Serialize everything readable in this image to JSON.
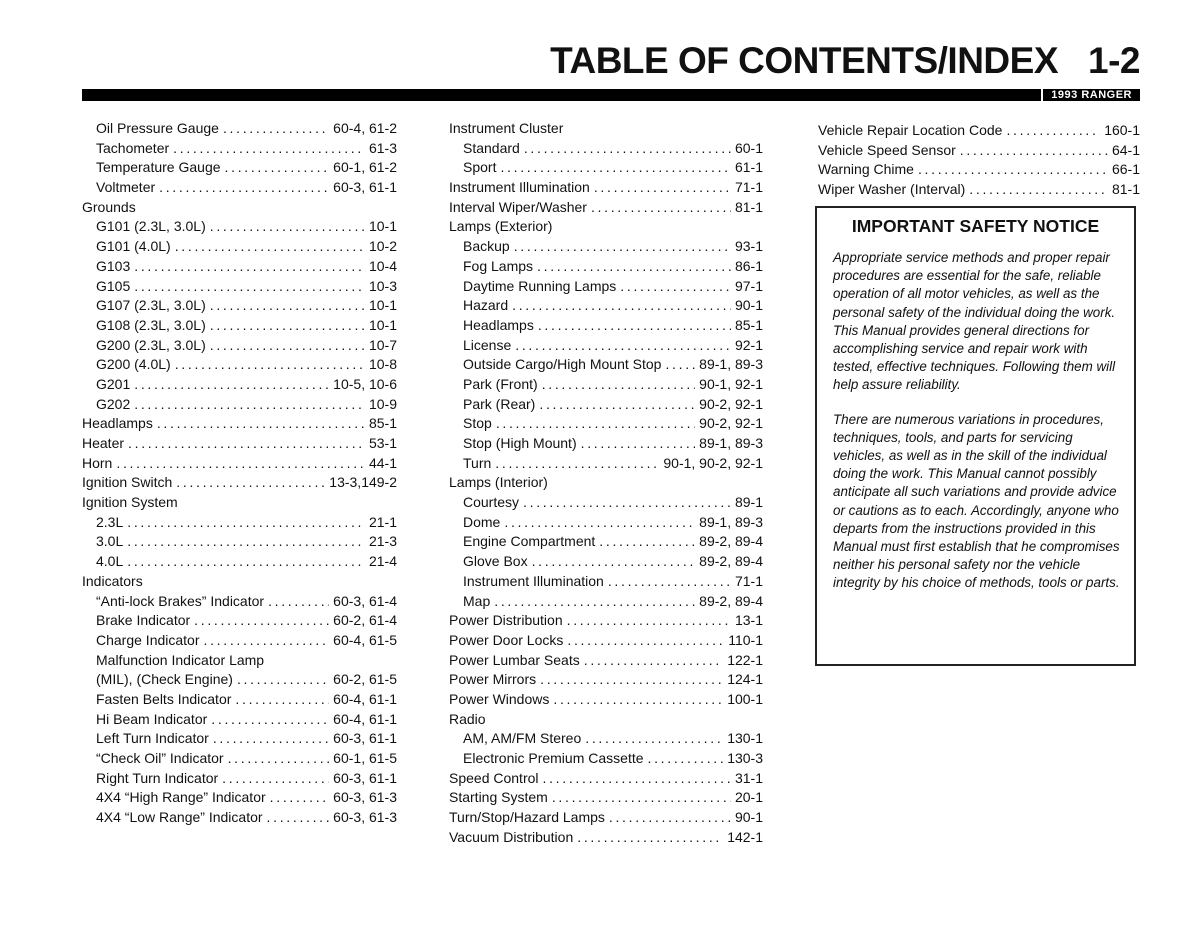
{
  "header": {
    "title": "TABLE OF CONTENTS/INDEX",
    "page_number": "1-2",
    "model": "1993 RANGER"
  },
  "columns": [
    [
      {
        "label": "Oil Pressure Gauge",
        "page": "60-4, 61-2",
        "indent": true
      },
      {
        "label": "Tachometer",
        "page": "61-3",
        "indent": true
      },
      {
        "label": "Temperature Gauge",
        "page": "60-1, 61-2",
        "indent": true
      },
      {
        "label": "Voltmeter",
        "page": "60-3, 61-1",
        "indent": true
      },
      {
        "label": "Grounds",
        "page": "",
        "indent": false
      },
      {
        "label": "G101 (2.3L, 3.0L)",
        "page": "10-1",
        "indent": true
      },
      {
        "label": "G101 (4.0L)",
        "page": "10-2",
        "indent": true
      },
      {
        "label": "G103",
        "page": "10-4",
        "indent": true
      },
      {
        "label": "G105",
        "page": "10-3",
        "indent": true
      },
      {
        "label": "G107 (2.3L, 3.0L)",
        "page": "10-1",
        "indent": true
      },
      {
        "label": "G108 (2.3L, 3.0L)",
        "page": "10-1",
        "indent": true
      },
      {
        "label": "G200 (2.3L, 3.0L)",
        "page": "10-7",
        "indent": true
      },
      {
        "label": "G200 (4.0L)",
        "page": "10-8",
        "indent": true
      },
      {
        "label": "G201",
        "page": "10-5, 10-6",
        "indent": true
      },
      {
        "label": "G202",
        "page": "10-9",
        "indent": true
      },
      {
        "label": "Headlamps",
        "page": "85-1",
        "indent": false
      },
      {
        "label": "Heater",
        "page": "53-1",
        "indent": false
      },
      {
        "label": "Horn",
        "page": "44-1",
        "indent": false
      },
      {
        "label": "Ignition Switch",
        "page": "13-3,149-2",
        "indent": false
      },
      {
        "label": "Ignition System",
        "page": "",
        "indent": false
      },
      {
        "label": "2.3L",
        "page": "21-1",
        "indent": true
      },
      {
        "label": "3.0L",
        "page": "21-3",
        "indent": true
      },
      {
        "label": "4.0L",
        "page": "21-4",
        "indent": true
      },
      {
        "label": "Indicators",
        "page": "",
        "indent": false
      },
      {
        "label": "“Anti-lock Brakes” Indicator",
        "page": "60-3, 61-4",
        "indent": true
      },
      {
        "label": "Brake Indicator",
        "page": "60-2, 61-4",
        "indent": true
      },
      {
        "label": "Charge Indicator",
        "page": "60-4, 61-5",
        "indent": true
      },
      {
        "label": "Malfunction Indicator Lamp",
        "page": "",
        "indent": true
      },
      {
        "label": "(MIL), (Check Engine)",
        "page": "60-2, 61-5",
        "indent": true
      },
      {
        "label": "Fasten Belts Indicator",
        "page": "60-4, 61-1",
        "indent": true
      },
      {
        "label": "Hi Beam Indicator",
        "page": "60-4, 61-1",
        "indent": true
      },
      {
        "label": "Left Turn Indicator",
        "page": "60-3, 61-1",
        "indent": true
      },
      {
        "label": "“Check Oil” Indicator",
        "page": "60-1, 61-5",
        "indent": true
      },
      {
        "label": "Right Turn Indicator",
        "page": "60-3, 61-1",
        "indent": true
      },
      {
        "label": "4X4 “High Range” Indicator",
        "page": "60-3, 61-3",
        "indent": true
      },
      {
        "label": "4X4 “Low Range” Indicator",
        "page": "60-3, 61-3",
        "indent": true
      }
    ],
    [
      {
        "label": "Instrument Cluster",
        "page": "",
        "indent": false
      },
      {
        "label": "Standard",
        "page": "60-1",
        "indent": true
      },
      {
        "label": "Sport",
        "page": "61-1",
        "indent": true
      },
      {
        "label": "Instrument Illumination",
        "page": "71-1",
        "indent": false
      },
      {
        "label": "Interval Wiper/Washer",
        "page": "81-1",
        "indent": false
      },
      {
        "label": "Lamps (Exterior)",
        "page": "",
        "indent": false
      },
      {
        "label": "Backup",
        "page": "93-1",
        "indent": true
      },
      {
        "label": "Fog Lamps",
        "page": "86-1",
        "indent": true
      },
      {
        "label": "Daytime Running Lamps",
        "page": "97-1",
        "indent": true
      },
      {
        "label": "Hazard",
        "page": "90-1",
        "indent": true
      },
      {
        "label": "Headlamps",
        "page": "85-1",
        "indent": true
      },
      {
        "label": "License",
        "page": "92-1",
        "indent": true
      },
      {
        "label": "Outside Cargo/High Mount Stop",
        "page": "89-1, 89-3",
        "indent": true
      },
      {
        "label": "Park (Front)",
        "page": "90-1, 92-1",
        "indent": true
      },
      {
        "label": "Park (Rear)",
        "page": "90-2, 92-1",
        "indent": true
      },
      {
        "label": "Stop",
        "page": "90-2, 92-1",
        "indent": true
      },
      {
        "label": "Stop (High Mount)",
        "page": "89-1, 89-3",
        "indent": true
      },
      {
        "label": "Turn",
        "page": "90-1, 90-2, 92-1",
        "indent": true
      },
      {
        "label": "Lamps (Interior)",
        "page": "",
        "indent": false
      },
      {
        "label": "Courtesy",
        "page": "89-1",
        "indent": true
      },
      {
        "label": "Dome",
        "page": "89-1, 89-3",
        "indent": true
      },
      {
        "label": "Engine Compartment",
        "page": "89-2, 89-4",
        "indent": true
      },
      {
        "label": "Glove Box",
        "page": "89-2, 89-4",
        "indent": true
      },
      {
        "label": "Instrument Illumination",
        "page": "71-1",
        "indent": true
      },
      {
        "label": "Map",
        "page": "89-2, 89-4",
        "indent": true
      },
      {
        "label": "Power Distribution",
        "page": "13-1",
        "indent": false
      },
      {
        "label": "Power Door Locks",
        "page": "110-1",
        "indent": false
      },
      {
        "label": "Power Lumbar Seats",
        "page": "122-1",
        "indent": false
      },
      {
        "label": "Power Mirrors",
        "page": "124-1",
        "indent": false
      },
      {
        "label": "Power Windows",
        "page": "100-1",
        "indent": false
      },
      {
        "label": "Radio",
        "page": "",
        "indent": false
      },
      {
        "label": "AM, AM/FM Stereo",
        "page": "130-1",
        "indent": true
      },
      {
        "label": "Electronic Premium Cassette",
        "page": "130-3",
        "indent": true
      },
      {
        "label": "Speed Control",
        "page": "31-1",
        "indent": false
      },
      {
        "label": "Starting System",
        "page": "20-1",
        "indent": false
      },
      {
        "label": "Turn/Stop/Hazard Lamps",
        "page": "90-1",
        "indent": false
      },
      {
        "label": "Vacuum Distribution",
        "page": "142-1",
        "indent": false
      }
    ],
    [
      {
        "label": "Vehicle Repair Location Code",
        "page": "160-1",
        "indent": false
      },
      {
        "label": "Vehicle Speed Sensor",
        "page": "64-1",
        "indent": false
      },
      {
        "label": "Warning Chime",
        "page": "66-1",
        "indent": false
      },
      {
        "label": "Wiper Washer (Interval)",
        "page": "81-1",
        "indent": false
      }
    ]
  ],
  "notice": {
    "title": "IMPORTANT SAFETY NOTICE",
    "paragraphs": [
      "Appropriate service methods and proper repair procedures are essential for the safe, reliable operation of all motor vehicles, as well as the personal safety of the individual doing the work. This Manual provides general directions for accomplishing service and repair work with tested, effective techniques. Following them will help assure reliability.",
      "There are numerous variations in procedures, techniques, tools, and parts for servicing vehicles, as well as in the skill of the individual doing the work. This Manual cannot possibly anticipate all such variations and provide advice or cautions as to each. Accordingly, anyone who departs from the instructions provided in this Manual must first establish that he compromises neither his personal safety nor the vehicle integrity by his choice of methods, tools or parts."
    ]
  }
}
